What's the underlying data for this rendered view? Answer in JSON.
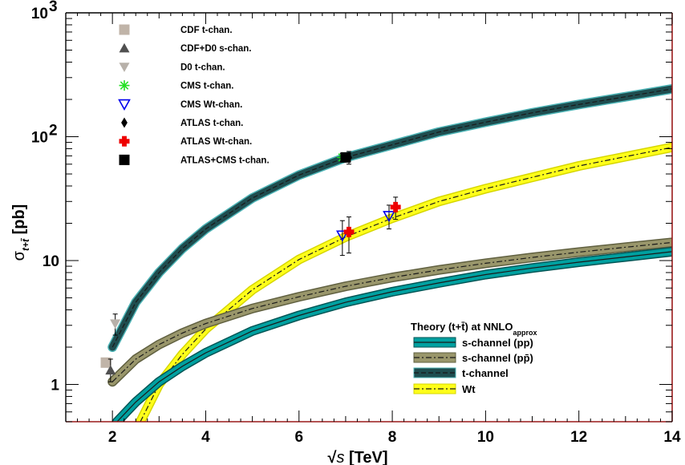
{
  "chart_data": {
    "type": "line",
    "x_axis": {
      "tick_labels": [
        "2",
        "4",
        "6",
        "8",
        "10",
        "12",
        "14"
      ],
      "range": [
        1,
        14
      ]
    },
    "y_axis": {
      "scale": "log",
      "range": [
        0.5,
        1000
      ],
      "tick_labels": [
        {
          "value": 1,
          "label": "1",
          "exponent": ""
        },
        {
          "value": 10,
          "label": "10",
          "exponent": ""
        },
        {
          "value": 100,
          "label": "10",
          "exponent": "2"
        },
        {
          "value": 1000,
          "label": "10",
          "exponent": "3"
        }
      ]
    },
    "xlabel": {
      "root": "√",
      "var": "s",
      "rest": " [TeV]"
    },
    "ylabel": {
      "sigma": "σ",
      "sub": "t+t̄",
      "rest": " [pb]"
    },
    "grid": false,
    "theory_legend": {
      "title": "Theory (t+t̄) at NNLO",
      "title_sub": "approx",
      "placement": "bottom-right",
      "entries": [
        "s-channel (pp)",
        "s-channel (pp̄)",
        "t-channel",
        "Wt"
      ]
    },
    "theory_bands": [
      {
        "id": "t-channel",
        "color": "#1e4d4f",
        "edge_color": "#4cb3b5",
        "line_style": "dashed",
        "x": [
          2,
          2.5,
          3,
          3.5,
          4,
          5,
          6,
          7,
          8,
          9,
          10,
          11,
          12,
          13,
          14
        ],
        "y": [
          2.0,
          4.6,
          8.0,
          12.5,
          18,
          32,
          49,
          68,
          86,
          109,
          131,
          156,
          182,
          210,
          243
        ]
      },
      {
        "id": "Wt",
        "color": "#ffff1a",
        "edge_color": "#d6d600",
        "line_style": "dashdot",
        "x": [
          2.6,
          3,
          3.5,
          4,
          5,
          6,
          7,
          8,
          9,
          10,
          11,
          12,
          13,
          14
        ],
        "y": [
          0.5,
          1.0,
          1.75,
          2.8,
          5.8,
          10.2,
          15.5,
          22,
          30,
          38,
          47,
          58,
          69,
          82
        ]
      },
      {
        "id": "s-channel (pp̄)",
        "color": "#99966b",
        "edge_color": "#606040",
        "line_style": "dashdot",
        "x": [
          2,
          2.5,
          3,
          3.5,
          4,
          5,
          6,
          7,
          8,
          9,
          10,
          11,
          12,
          13,
          14
        ],
        "y": [
          1.05,
          1.6,
          2.1,
          2.6,
          3.1,
          4.1,
          5.1,
          6.2,
          7.3,
          8.4,
          9.5,
          10.6,
          11.7,
          12.8,
          14.0
        ]
      },
      {
        "id": "s-channel (pp)",
        "color": "#00a0a0",
        "edge_color": "#005555",
        "line_style": "solid",
        "x": [
          2.1,
          2.5,
          3,
          3.5,
          4,
          5,
          6,
          7,
          8,
          9,
          10,
          11,
          12,
          13,
          14
        ],
        "y": [
          0.5,
          0.72,
          1.05,
          1.4,
          1.8,
          2.7,
          3.6,
          4.6,
          5.6,
          6.6,
          7.7,
          8.7,
          9.7,
          10.7,
          11.8
        ]
      }
    ],
    "measurements": [
      {
        "name": "CDF t-chan.",
        "marker": "square",
        "color": "#c0b4a8",
        "x": 1.86,
        "y": 1.5,
        "err_lo": 0.0,
        "err_hi": 0.0
      },
      {
        "name": "CDF+D0 s-chan.",
        "marker": "triangle-up",
        "color": "#505050",
        "x": 1.96,
        "y": 1.3,
        "err_lo": 0.25,
        "err_hi": 0.3
      },
      {
        "name": "D0 t-chan.",
        "marker": "triangle-down",
        "color": "#b7b0a9",
        "x": 2.06,
        "y": 3.1,
        "err_lo": 0.6,
        "err_hi": 0.6
      },
      {
        "name": "CMS t-chan.",
        "marker": "asterisk",
        "color": "#22e022",
        "x": 6.93,
        "y": 68,
        "err_lo": 5,
        "err_hi": 5
      },
      {
        "name": "CMS Wt-chan.",
        "marker": "triangle-down-open",
        "color": "#0000ee",
        "x": 6.93,
        "y": 16,
        "err_lo": 5,
        "err_hi": 5
      },
      {
        "name": "ATLAS t-chan.",
        "marker": "diamond",
        "color": "#000000",
        "x": 7.07,
        "y": 68,
        "err_lo": 8,
        "err_hi": 8
      },
      {
        "name": "ATLAS Wt-chan.",
        "marker": "cross",
        "color": "#ee0000",
        "x": 7.07,
        "y": 17,
        "err_lo": 5.5,
        "err_hi": 5.5
      },
      {
        "name": "ATLAS+CMS t-chan.",
        "marker": "square-filled",
        "color": "#000000",
        "x": 7.0,
        "y": 68,
        "err_lo": 0,
        "err_hi": 0
      },
      {
        "name": "CMS Wt-chan.",
        "marker": "triangle-down-open",
        "color": "#0000ee",
        "x": 7.93,
        "y": 23,
        "err_lo": 5,
        "err_hi": 5
      },
      {
        "name": "ATLAS Wt-chan.",
        "marker": "cross",
        "color": "#ee0000",
        "x": 8.07,
        "y": 27,
        "err_lo": 5.5,
        "err_hi": 5.5
      }
    ]
  }
}
